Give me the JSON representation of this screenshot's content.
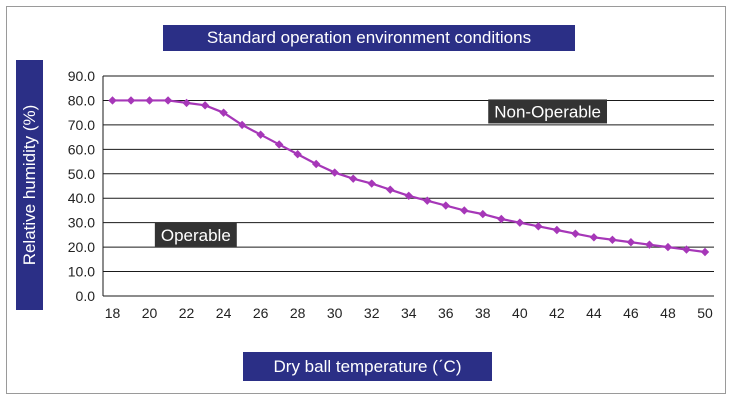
{
  "chart_data": {
    "type": "line",
    "title": "Standard operation environment conditions",
    "xlabel": "Dry ball temperature (ˊC)",
    "ylabel": "Relative humidity (%)",
    "xlim": [
      18,
      50
    ],
    "ylim": [
      0,
      90
    ],
    "x_ticks": [
      "18",
      "20",
      "22",
      "24",
      "26",
      "28",
      "30",
      "32",
      "34",
      "36",
      "38",
      "40",
      "42",
      "44",
      "46",
      "48",
      "50"
    ],
    "y_ticks": [
      "0.0",
      "10.0",
      "20.0",
      "30.0",
      "40.0",
      "50.0",
      "60.0",
      "70.0",
      "80.0",
      "90.0"
    ],
    "grid": "horizontal",
    "annotations": [
      {
        "text": "Non-Operable",
        "x": 41.5,
        "y": 75.5
      },
      {
        "text": "Operable",
        "x": 22.5,
        "y": 25
      }
    ],
    "series": [
      {
        "color": "#a637b8",
        "x": [
          18,
          19,
          20,
          21,
          22,
          23,
          24,
          25,
          26,
          27,
          28,
          29,
          30,
          31,
          32,
          33,
          34,
          35,
          36,
          37,
          38,
          39,
          40,
          41,
          42,
          43,
          44,
          45,
          46,
          47,
          48,
          49,
          50
        ],
        "values": [
          80,
          80,
          80,
          80,
          79,
          78,
          75,
          70,
          66,
          62,
          58,
          54,
          50.5,
          48,
          46,
          43.5,
          41,
          39,
          37,
          35,
          33.5,
          31.5,
          30,
          28.5,
          27,
          25.5,
          24,
          23,
          22,
          21,
          20,
          19,
          18
        ]
      }
    ]
  },
  "colors": {
    "label_box": "#2b2f86",
    "annotation_box": "#333333",
    "grid": "#1a1a1a"
  }
}
